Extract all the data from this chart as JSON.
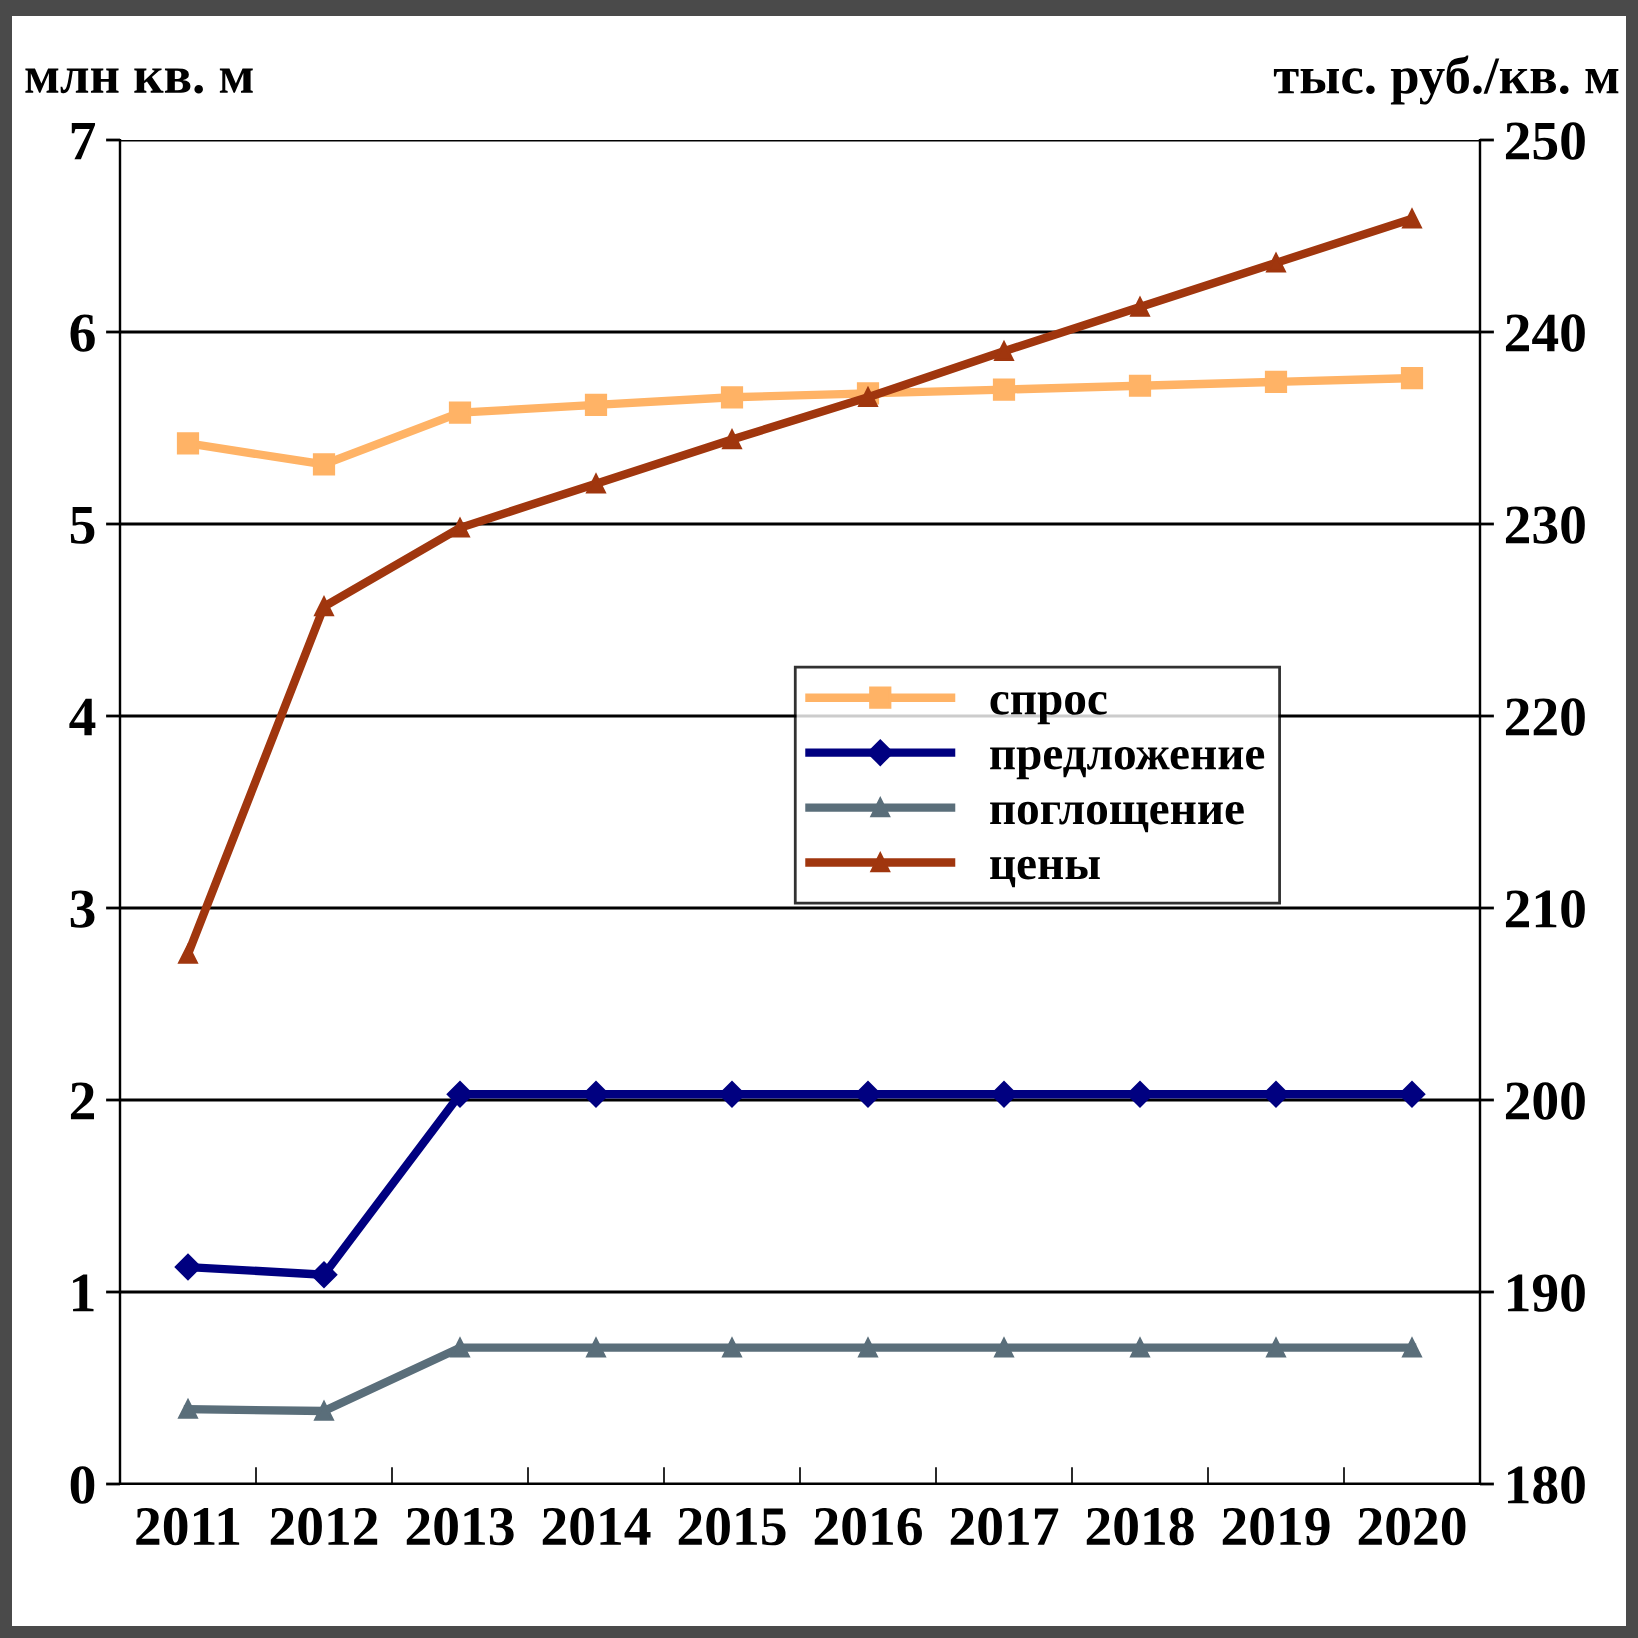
{
  "chart_data": {
    "type": "line",
    "ylabel": "млн кв. м",
    "y2label": "тыс. руб./кв. м",
    "categories": [
      "2011",
      "2012",
      "2013",
      "2014",
      "2015",
      "2016",
      "2017",
      "2018",
      "2019",
      "2020"
    ],
    "series": [
      {
        "name": "спрос",
        "color": "#ffb366",
        "marker": "square",
        "values": [
          5.42,
          5.31,
          5.58,
          5.62,
          5.66,
          5.68,
          5.7,
          5.72,
          5.74,
          5.76
        ]
      },
      {
        "name": "предложение",
        "color": "#000080",
        "marker": "diamond",
        "values": [
          1.13,
          1.09,
          2.03,
          2.03,
          2.03,
          2.03,
          2.03,
          2.03,
          2.03,
          2.03
        ]
      },
      {
        "name": "поглощение",
        "color": "#5a6e7a",
        "marker": "triangle",
        "values": [
          0.39,
          0.38,
          0.71,
          0.71,
          0.71,
          0.71,
          0.71,
          0.71,
          0.71,
          0.71
        ]
      },
      {
        "name": "цены",
        "color": "#a0360e",
        "marker": "triangle",
        "axis": "y2",
        "values": [
          207.6,
          225.7,
          229.8,
          232.1,
          234.4,
          236.6,
          239.0,
          241.3,
          243.6,
          245.9
        ]
      }
    ],
    "ylim": [
      0,
      7
    ],
    "yticks": [
      0,
      1,
      2,
      3,
      4,
      5,
      6,
      7
    ],
    "y2lim": [
      180,
      250
    ],
    "y2ticks": [
      180,
      190,
      200,
      210,
      220,
      230,
      240,
      250
    ],
    "grid": "y",
    "legend": "right",
    "line_style": "solid"
  }
}
